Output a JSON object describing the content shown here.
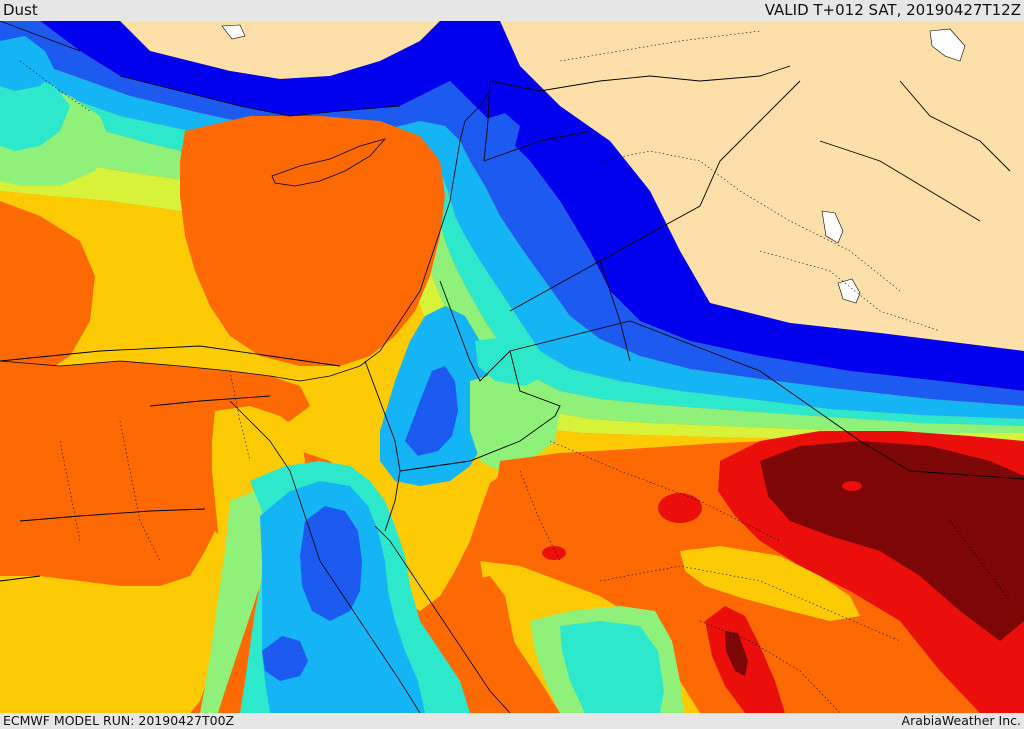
{
  "header": {
    "product": "Dust",
    "valid_time": "VALID T+012 SAT, 20190427T12Z"
  },
  "footer": {
    "model_run": "ECMWF MODEL RUN: 20190427T00Z",
    "credit": "ArabiaWeather Inc."
  },
  "colors": {
    "land_background": "#fde0a9",
    "level_1": "#0000ee",
    "level_2": "#1d5bf0",
    "level_3": "#14b4f5",
    "level_4": "#2ee8cc",
    "level_5": "#8ff07a",
    "level_6": "#d8f23a",
    "level_7": "#fccb05",
    "level_8": "#fd6a03",
    "level_9": "#ea0f0b",
    "level_10": "#7d0606",
    "water_body": "#ffffff"
  }
}
